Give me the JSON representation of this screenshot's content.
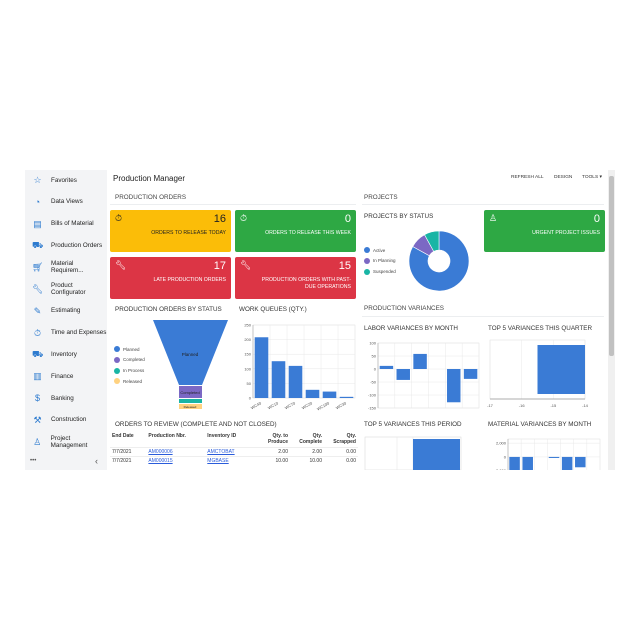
{
  "sidebar": {
    "items": [
      {
        "label": "Favorites",
        "icon": "star-icon"
      },
      {
        "label": "Data Views",
        "icon": "pie-chart-icon"
      },
      {
        "label": "Bills of Material",
        "icon": "document-icon"
      },
      {
        "label": "Production Orders",
        "icon": "truck-icon"
      },
      {
        "label": "Material Requirem...",
        "icon": "cart-icon"
      },
      {
        "label": "Product Configurator",
        "icon": "wrench-icon"
      },
      {
        "label": "Estimating",
        "icon": "pencil-icon"
      },
      {
        "label": "Time and Expenses",
        "icon": "stopwatch-icon"
      },
      {
        "label": "Inventory",
        "icon": "truck-icon"
      },
      {
        "label": "Finance",
        "icon": "ledger-icon"
      },
      {
        "label": "Banking",
        "icon": "dollar-icon"
      },
      {
        "label": "Construction",
        "icon": "crane-icon"
      },
      {
        "label": "Project Management",
        "icon": "user-group-icon"
      }
    ],
    "more": "•••",
    "collapse": "‹"
  },
  "header": {
    "title": "Production Manager",
    "refresh_all": "REFRESH ALL",
    "design": "DESIGN",
    "tools": "TOOLS ▾"
  },
  "production_orders": {
    "section_title": "PRODUCTION ORDERS",
    "tiles": [
      {
        "value": "16",
        "label": "ORDERS TO RELEASE TODAY",
        "color": "#fbbd08"
      },
      {
        "value": "0",
        "label": "ORDERS TO RELEASE THIS WEEK",
        "color": "#2ea844"
      },
      {
        "value": "17",
        "label": "LATE PRODUCTION ORDERS",
        "color": "#dc3545"
      },
      {
        "value": "15",
        "label": "PRODUCTION ORDERS WITH PAST-DUE OPERATIONS",
        "color": "#dc3545"
      }
    ]
  },
  "projects": {
    "section_title": "PROJECTS",
    "tile": {
      "value": "0",
      "label": "URGENT PROJECT ISSUES",
      "color": "#2ea844"
    }
  },
  "production_variances": {
    "section_title": "PRODUCTION VARIANCES"
  },
  "orders_to_review": {
    "title": "ORDERS TO REVIEW (COMPLETE AND NOT CLOSED)",
    "columns": [
      "End Date",
      "Production Nbr.",
      "Inventory ID",
      "Qty. to Produce",
      "Qty. Complete",
      "Qty. Scrapped"
    ],
    "rows": [
      [
        "7/7/2021",
        "AM000006",
        "AMCTOBAT",
        "2.00",
        "2.00",
        "0.00"
      ],
      [
        "7/7/2021",
        "AM000015",
        "MGBASE",
        "10.00",
        "10.00",
        "0.00"
      ]
    ]
  },
  "chart_data": [
    {
      "type": "pie",
      "title": "PROJECTS BY STATUS",
      "categories": [
        "Active",
        "In Planning",
        "Suspended"
      ],
      "values": [
        83,
        9,
        8
      ],
      "colors": [
        "#3a7bd5",
        "#7b68c4",
        "#19b5a5"
      ],
      "legend": "left"
    },
    {
      "type": "funnel",
      "title": "PRODUCTION ORDERS BY STATUS",
      "categories": [
        "Planned",
        "Completed",
        "In Process",
        "Released"
      ],
      "colors": [
        "#3a7bd5",
        "#7b68c4",
        "#19b5a5",
        "#ffd280"
      ],
      "legend": "left"
    },
    {
      "type": "bar",
      "title": "WORK QUEUES (QTY.)",
      "categories": [
        "WC40",
        "WC10",
        "WC70",
        "WC20",
        "WC100",
        "WC30"
      ],
      "values": [
        208,
        126,
        110,
        28,
        22,
        4
      ],
      "ylim": [
        0,
        250
      ],
      "yticks": [
        0,
        50,
        100,
        150,
        200,
        250
      ],
      "grid": true
    },
    {
      "type": "bar",
      "title": "LABOR VARIANCES BY MONTH",
      "values": [
        12,
        -42,
        58,
        0,
        -128,
        -38
      ],
      "ylim": [
        -150,
        100
      ],
      "yticks": [
        -150,
        -100,
        -50,
        0,
        50,
        100
      ],
      "grid": true
    },
    {
      "type": "bar",
      "orientation": "horizontal",
      "title": "TOP 5 VARIANCES THIS QUARTER",
      "values": [
        -15.5
      ],
      "xlim": [
        -17,
        -14
      ],
      "xticks": [
        -17,
        -16,
        -15,
        -14
      ],
      "grid": true
    },
    {
      "type": "bar",
      "title": "TOP 5 VARIANCES THIS PERIOD",
      "grid": true
    },
    {
      "type": "bar",
      "title": "MATERIAL VARIANCES BY MONTH",
      "values": [
        -2300,
        -2600,
        0,
        -150,
        -2000,
        -1500,
        0
      ],
      "yticks": [
        -2000,
        0,
        2000
      ],
      "yticklabels": [
        "-2,000",
        "0",
        "2,000"
      ],
      "grid": true
    }
  ]
}
